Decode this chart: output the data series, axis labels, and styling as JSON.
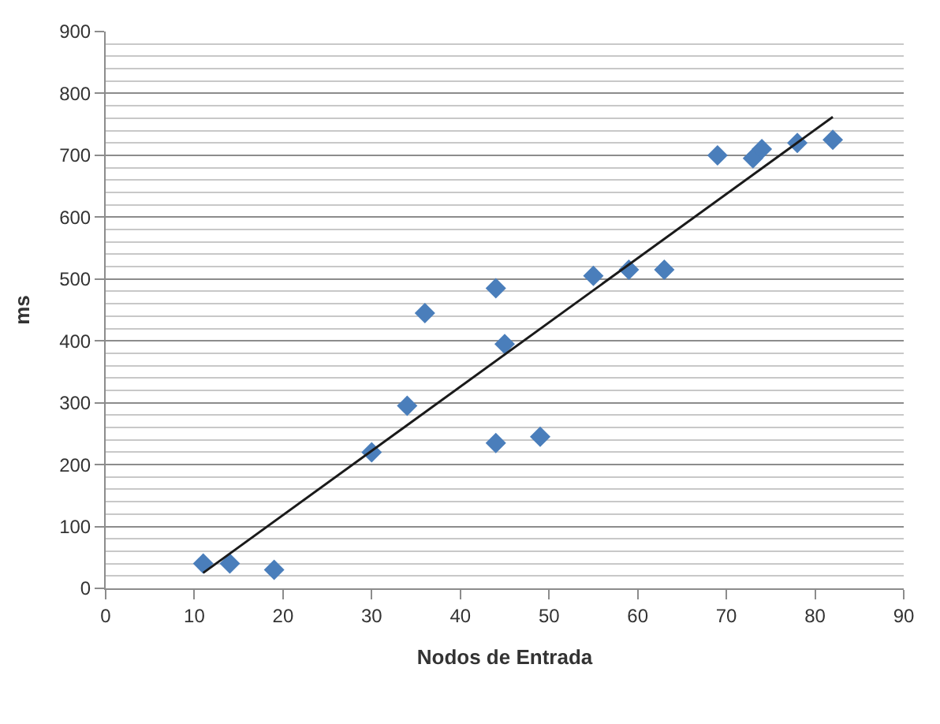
{
  "chart_data": {
    "type": "scatter",
    "xlabel": "Nodos de Entrada",
    "ylabel": "ms",
    "series": [
      {
        "color": "#4a7ebb",
        "marker": "diamond",
        "x": [
          11,
          14,
          19,
          30,
          34,
          36,
          44,
          45,
          44,
          49,
          55,
          59,
          63,
          69,
          73,
          74,
          78,
          82
        ],
        "values": [
          40,
          40,
          30,
          220,
          295,
          445,
          485,
          395,
          235,
          245,
          505,
          515,
          515,
          700,
          695,
          710,
          720,
          725
        ]
      },
      {
        "type": "line",
        "color": "#1a1a1a",
        "marker": "none",
        "x": [
          11,
          82
        ],
        "values": [
          25,
          762
        ]
      }
    ],
    "xlim": [
      0,
      90
    ],
    "xticks": [
      0,
      10,
      20,
      30,
      40,
      50,
      60,
      70,
      80,
      90
    ],
    "ylim": [
      0,
      900
    ],
    "yticks": [
      0,
      100,
      200,
      300,
      400,
      500,
      600,
      700,
      800,
      900
    ],
    "grid": "y",
    "legend": false
  }
}
